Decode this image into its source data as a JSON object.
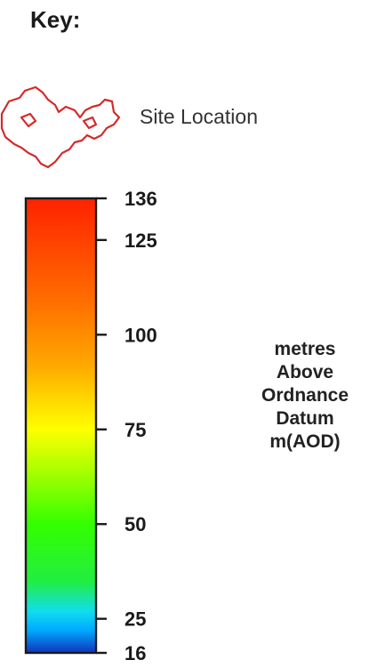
{
  "legend": {
    "title": "Key:",
    "site_location": {
      "label": "Site Location",
      "outline_color": "#d42a2a",
      "icon": "site-boundary-outline-icon"
    },
    "elevation_scale": {
      "min_value": 16,
      "max_value": 136,
      "ticks": [
        {
          "value": 136,
          "label": "136"
        },
        {
          "value": 125,
          "label": "125"
        },
        {
          "value": 100,
          "label": "100"
        },
        {
          "value": 75,
          "label": "75"
        },
        {
          "value": 50,
          "label": "50"
        },
        {
          "value": 25,
          "label": "25"
        },
        {
          "value": 16,
          "label": "16"
        }
      ],
      "color_stops": [
        {
          "value": 136,
          "color": "#ff2200"
        },
        {
          "value": 110,
          "color": "#ff6a00"
        },
        {
          "value": 92,
          "color": "#ffa800"
        },
        {
          "value": 75,
          "color": "#ffff00"
        },
        {
          "value": 64,
          "color": "#a8ff00"
        },
        {
          "value": 50,
          "color": "#33ff00"
        },
        {
          "value": 35,
          "color": "#22ee40"
        },
        {
          "value": 27,
          "color": "#11ddee"
        },
        {
          "value": 22,
          "color": "#00aaff"
        },
        {
          "value": 16,
          "color": "#1133bb"
        }
      ],
      "unit_lines": [
        "metres",
        "Above",
        "Ordnance",
        "Datum",
        "m(AOD)"
      ]
    }
  }
}
